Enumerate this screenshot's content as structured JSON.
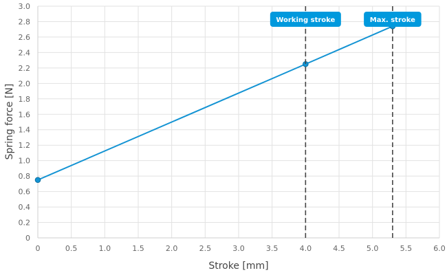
{
  "chart_data": {
    "type": "line",
    "xlabel": "Stroke [mm]",
    "ylabel": "Spring force [N]",
    "xlim": [
      0,
      6
    ],
    "ylim": [
      0,
      3
    ],
    "x_ticks": [
      "0",
      "0.5",
      "1.0",
      "1.5",
      "2.0",
      "2.5",
      "3.0",
      "3.5",
      "4.0",
      "4.5",
      "5.0",
      "5.5",
      "6.0"
    ],
    "y_ticks": [
      "0",
      "0.2",
      "0.4",
      "0.6",
      "0.8",
      "1.0",
      "1.2",
      "1.4",
      "1.6",
      "1.8",
      "2.0",
      "2.2",
      "2.4",
      "2.6",
      "2.8",
      "3.0"
    ],
    "grid": true,
    "series": [
      {
        "color": "#1393d3",
        "x": [
          0,
          4.0,
          5.3
        ],
        "y": [
          0.75,
          2.25,
          2.74
        ]
      }
    ],
    "markers": [
      {
        "label": "Working stroke",
        "x": 4.0
      },
      {
        "label": "Max. stroke",
        "x": 5.3
      }
    ],
    "marker_color": "#0099dd"
  }
}
